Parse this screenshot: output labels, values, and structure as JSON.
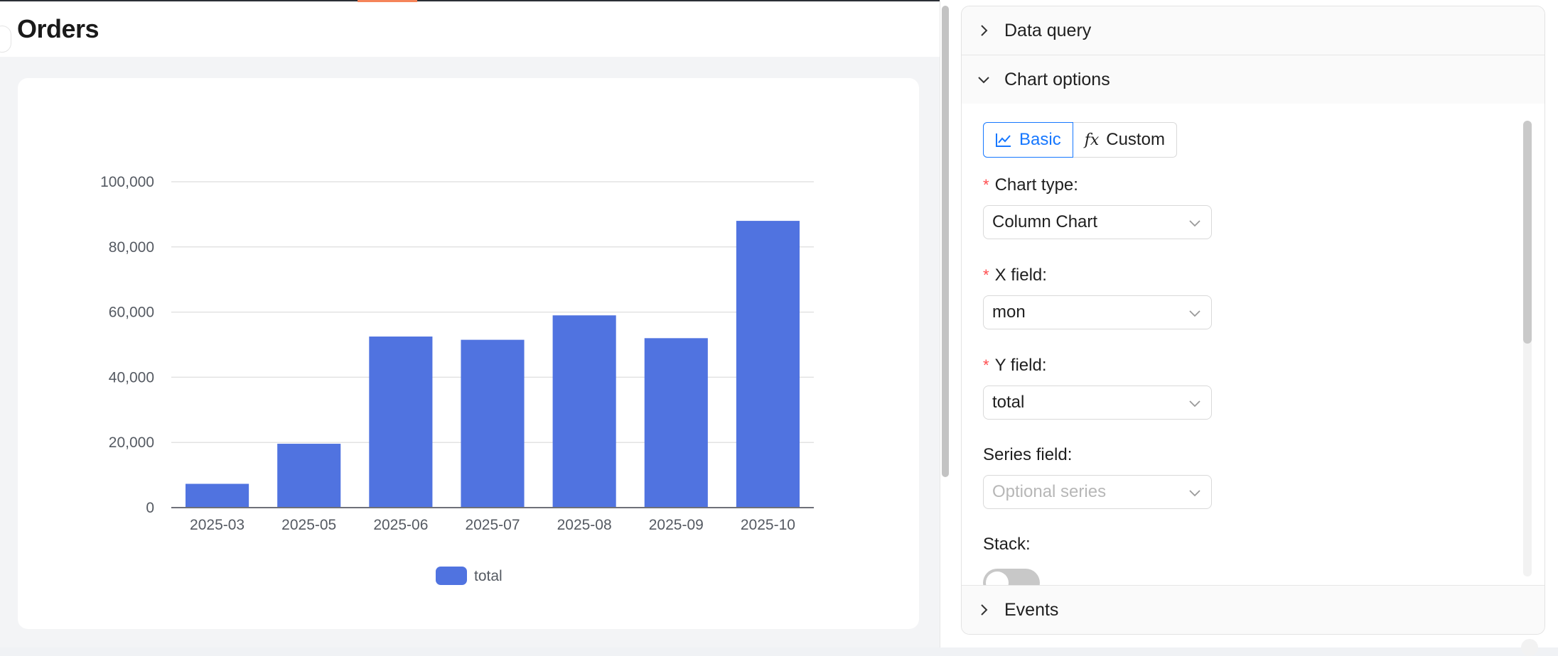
{
  "page": {
    "title": "Orders"
  },
  "chart_data": {
    "type": "bar",
    "categories": [
      "2025-03",
      "2025-05",
      "2025-06",
      "2025-07",
      "2025-08",
      "2025-09",
      "2025-10"
    ],
    "series": [
      {
        "name": "total",
        "values": [
          7300,
          19600,
          52500,
          51500,
          59000,
          52000,
          88000
        ],
        "color": "#5073e0"
      }
    ],
    "y_ticks": [
      "0",
      "20,000",
      "40,000",
      "60,000",
      "80,000",
      "100,000"
    ],
    "y_tick_values": [
      0,
      20000,
      40000,
      60000,
      80000,
      100000
    ],
    "ylim": [
      0,
      100000
    ],
    "grid": true,
    "legend": "bottom-center"
  },
  "settings": {
    "sections": {
      "data_query": "Data query",
      "chart_options": "Chart options",
      "events": "Events"
    },
    "mode_tabs": {
      "basic": "Basic",
      "fx": "fx",
      "custom": "Custom"
    },
    "fields": {
      "chart_type": {
        "label": "Chart type:",
        "value": "Column Chart",
        "required": "*"
      },
      "x_field": {
        "label": "X field:",
        "value": "mon",
        "required": "*"
      },
      "y_field": {
        "label": "Y field:",
        "value": "total",
        "required": "*"
      },
      "series_field": {
        "label": "Series field:",
        "placeholder": "Optional series"
      },
      "stack": {
        "label": "Stack:",
        "enabled": false
      }
    }
  }
}
